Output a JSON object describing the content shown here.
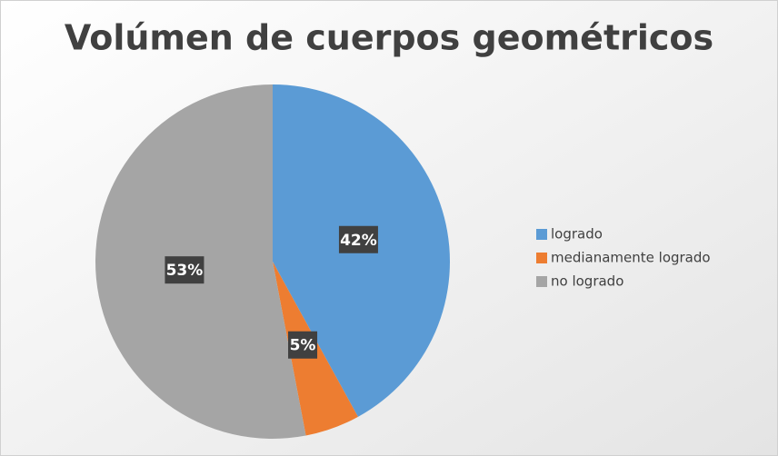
{
  "chart_data": {
    "type": "pie",
    "title": "Volúmen de cuerpos geométricos",
    "categories": [
      "logrado",
      "medianamente logrado",
      "no logrado"
    ],
    "values": [
      42,
      5,
      53
    ],
    "value_labels": [
      "42%",
      "5%",
      "53%"
    ],
    "colors": [
      "#5b9bd5",
      "#ed7d31",
      "#a5a5a5"
    ],
    "legend": "right"
  }
}
